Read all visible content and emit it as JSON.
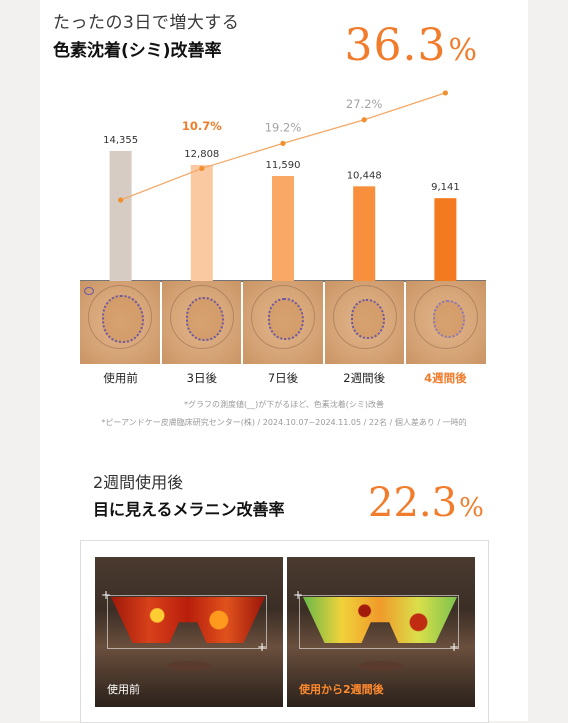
{
  "section1": {
    "subtitle": "たったの3日で増大する",
    "title": "色素沈着(シミ)改善率",
    "headline_number": "36.3",
    "headline_unit": "%"
  },
  "chart_data": {
    "type": "bar",
    "categories": [
      "使用前",
      "3日後",
      "7日後",
      "2週間後",
      "4週間後"
    ],
    "series": [
      {
        "values": [
          14355,
          12808,
          11590,
          10448,
          9141
        ]
      },
      {
        "values": [
          null,
          10.7,
          19.2,
          27.2,
          36.3
        ]
      }
    ],
    "bar_labels": [
      "14,355",
      "12,808",
      "11,590",
      "10,448",
      "9,141"
    ],
    "pct_labels": [
      "",
      "10.7%",
      "19.2%",
      "27.2%",
      ""
    ],
    "ylim": [
      0,
      16000
    ],
    "pct_ylim": [
      0,
      40
    ],
    "highlight_category": "4週間後",
    "colors": [
      "#d6ccc4",
      "#fbc9a1",
      "#f9a866",
      "#f88f3c",
      "#f37a1f"
    ],
    "line_color": "#f3a865"
  },
  "notes": {
    "note1": "*グラフの測度値(__)が下がるほど、色素沈着(シミ)改善",
    "note2": "*ピーアンドケー皮膚臨床研究センター(株) / 2024.10.07~2024.11.05 / 22名 / 個人差あり / 一時的"
  },
  "section2": {
    "subtitle": "2週間使用後",
    "title": "目に見えるメラニン改善率",
    "headline_number": "22.3",
    "headline_unit": "%",
    "before_caption": "使用前",
    "after_caption": "使用から2週間後"
  }
}
